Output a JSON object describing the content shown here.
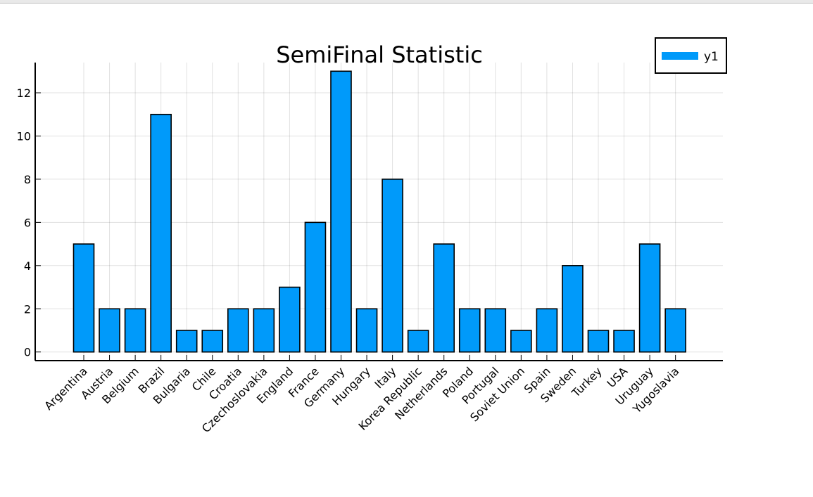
{
  "chart_data": {
    "type": "bar",
    "title": "SemiFinal Statistic",
    "xlabel": "",
    "ylabel": "",
    "categories": [
      "Argentina",
      "Austria",
      "Belgium",
      "Brazil",
      "Bulgaria",
      "Chile",
      "Croatia",
      "Czechoslovakia",
      "England",
      "France",
      "Germany",
      "Hungary",
      "Italy",
      "Korea Republic",
      "Netherlands",
      "Poland",
      "Portugal",
      "Soviet Union",
      "Spain",
      "Sweden",
      "Turkey",
      "USA",
      "Uruguay",
      "Yugoslavia"
    ],
    "series": [
      {
        "name": "y1",
        "values": [
          5,
          2,
          2,
          11,
          1,
          1,
          2,
          2,
          3,
          6,
          13,
          2,
          8,
          1,
          5,
          2,
          2,
          1,
          2,
          4,
          1,
          1,
          5,
          2
        ],
        "color": "#009AFA"
      }
    ],
    "ylim": [
      -0.4,
      13.4
    ],
    "yticks": [
      0,
      2,
      4,
      6,
      8,
      10,
      12
    ],
    "grid": true,
    "legend": "top-right"
  }
}
